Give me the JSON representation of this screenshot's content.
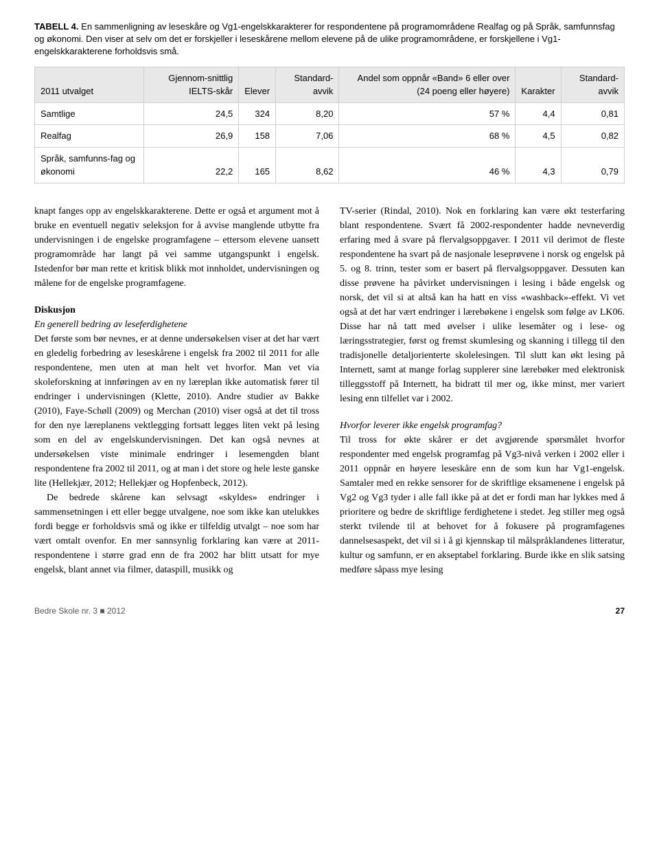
{
  "table": {
    "caption_bold": "TABELL 4.",
    "caption_text": " En sammenligning av leseskåre og Vg1-engelskkarakterer for respondentene på programområdene Realfag og på Språk, samfunnsfag og økonomi. Den viser at selv om det er forskjeller i leseskårene mellom elevene på de ulike programområdene, er forskjellene i Vg1-engelskkarakterene forholdsvis små.",
    "headers": {
      "c0": "2011 utvalget",
      "c1": "Gjennom-snittlig IELTS-skår",
      "c2": "Elever",
      "c3": "Standard-avvik",
      "c4": "Andel som oppnår «Band» 6 eller over (24 poeng eller høyere)",
      "c5": "Karakter",
      "c6": "Standard-avvik"
    },
    "rows": [
      {
        "c0": "Samtlige",
        "c1": "24,5",
        "c2": "324",
        "c3": "8,20",
        "c4": "57 %",
        "c5": "4,4",
        "c6": "0,81"
      },
      {
        "c0": "Realfag",
        "c1": "26,9",
        "c2": "158",
        "c3": "7,06",
        "c4": "68 %",
        "c5": "4,5",
        "c6": "0,82"
      },
      {
        "c0": "Språk, samfunns-fag og økonomi",
        "c1": "22,2",
        "c2": "165",
        "c3": "8,62",
        "c4": "46 %",
        "c5": "4,3",
        "c6": "0,79"
      }
    ]
  },
  "body": {
    "p1": "knapt fanges opp av engelskkarakterene. Dette er også et argument mot å bruke en eventuell negativ seleksjon for å avvise manglende utbytte fra undervisningen i de engelske programfagene – ettersom elevene uansett programområde har langt på vei samme utgangspunkt i engelsk. Istedenfor bør man rette et kritisk blikk mot innholdet, undervisningen og målene for de engelske programfagene.",
    "disk_title": "Diskusjon",
    "disk_sub1": "En generell bedring av leseferdighetene",
    "p2": "Det første som bør nevnes, er at denne undersøkelsen viser at det har vært en gledelig forbedring av leseskårene i engelsk fra 2002 til 2011 for alle respondentene, men uten at man helt vet hvorfor. Man vet via skoleforskning at innføringen av en ny læreplan ikke automatisk fører til endringer i undervisningen (Klette, 2010). Andre studier av Bakke (2010), Faye-Schøll (2009) og Merchan (2010) viser også at det til tross for den nye læreplanens vektlegging fortsatt legges liten vekt på lesing som en del av engelskundervisningen. Det kan også nevnes at undersøkelsen viste minimale endringer i lesemengden blant respondentene fra 2002 til 2011, og at man i det store og hele leste ganske lite (Hellekjær, 2012; Hellekjær og Hopfenbeck, 2012).",
    "p3": "De bedrede skårene kan selvsagt «skyldes» endringer i sammensetningen i ett eller begge utvalgene, noe som ikke kan utelukkes fordi begge er forholdsvis små og ikke er tilfeldig utvalgt – noe som har vært omtalt ovenfor. En mer sannsynlig forklaring kan være at 2011-respondentene i større grad enn de fra 2002 har blitt utsatt for mye engelsk, blant annet via filmer, dataspill, musikk og",
    "p4": "TV-serier (Rindal, 2010). Nok en forklaring kan være økt testerfaring blant respondentene. Svært få 2002-respondenter hadde nevneverdig erfaring med å svare på flervalgsoppgaver. I 2011 vil derimot de fleste respondentene ha svart på de nasjonale leseprøvene i norsk og engelsk på 5. og 8. trinn, tester som er basert på flervalgsoppgaver. Dessuten kan disse prøvene ha påvirket undervisningen i lesing i både engelsk og norsk, det vil si at altså kan ha hatt en viss «washback»-effekt. Vi vet også at det har vært endringer i lærebøkene i engelsk som følge av LK06. Disse har nå tatt med øvelser i ulike lesemåter og i lese- og læringsstrategier, først og fremst skumlesing og skanning i tillegg til den tradisjonelle detaljorienterte skolelesingen. Til slutt kan økt lesing på Internett, samt at mange forlag supplerer sine lærebøker med elektronisk tilleggsstoff på Internett, ha bidratt til mer og, ikke minst, mer variert lesing enn tilfellet var i 2002.",
    "disk_sub2": "Hvorfor leverer ikke engelsk programfag?",
    "p5": "Til tross for økte skårer er det avgjørende spørsmålet hvorfor respondenter med engelsk programfag på Vg3-nivå verken i 2002 eller i 2011 oppnår en høyere leseskåre enn de som kun har Vg1-engelsk. Samtaler med en rekke sensorer for de skriftlige eksamenene i engelsk på Vg2 og Vg3 tyder i alle fall ikke på at det er fordi man har lykkes med å prioritere og bedre de skriftlige ferdighetene i stedet. Jeg stiller meg også sterkt tvilende til at behovet for å fokusere på programfagenes dannelsesaspekt, det vil si i å gi kjennskap til målspråklandenes litteratur, kultur og samfunn, er en akseptabel forklaring. Burde ikke en slik satsing medføre såpass mye lesing"
  },
  "footer": {
    "left": "Bedre Skole nr. 3",
    "square": " ■ ",
    "year": "2012",
    "page": "27"
  }
}
